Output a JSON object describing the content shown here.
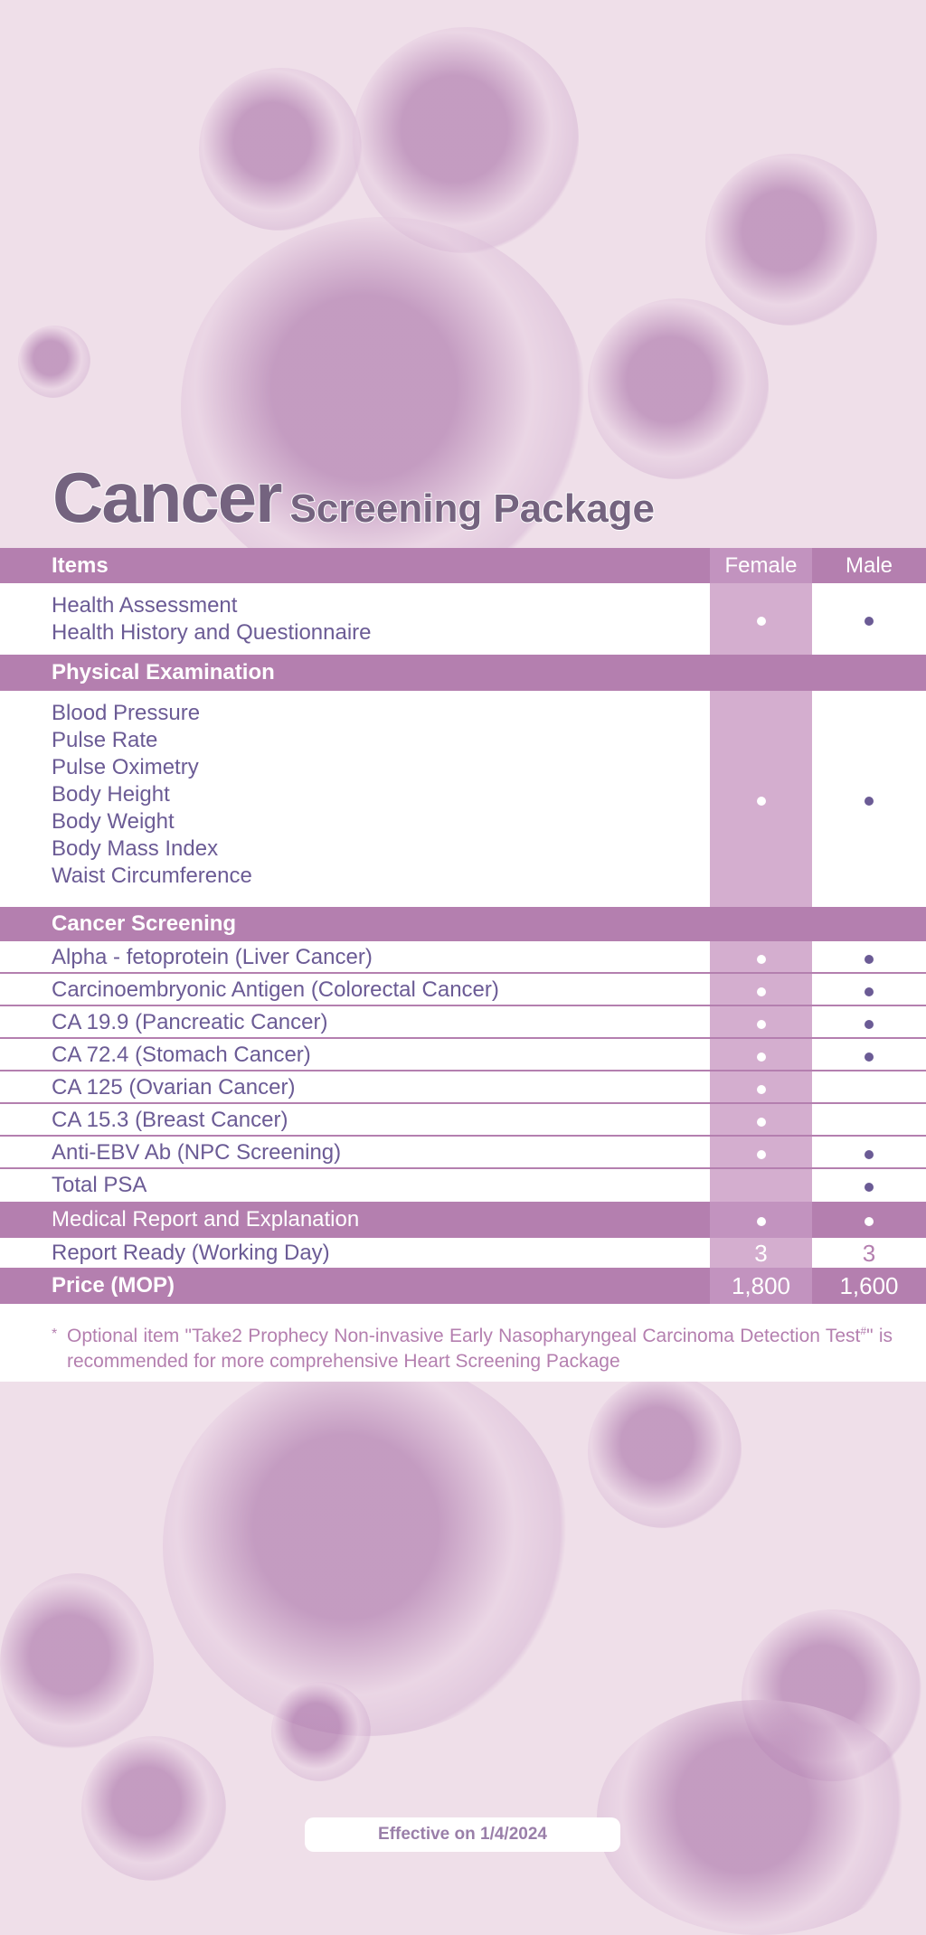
{
  "title": {
    "main": "Cancer",
    "sub": "Screening Package"
  },
  "header": {
    "items": "Items",
    "female": "Female",
    "male": "Male"
  },
  "health": {
    "lines": [
      "Health Assessment",
      "Health History and Questionnaire"
    ],
    "female": true,
    "male": true
  },
  "physical": {
    "heading": "Physical Examination",
    "lines": [
      "Blood Pressure",
      "Pulse Rate",
      "Pulse Oximetry",
      "Body Height",
      "Body Weight",
      "Body Mass Index",
      "Waist Circumference"
    ],
    "female": true,
    "male": true
  },
  "cancer": {
    "heading": "Cancer Screening",
    "rows": [
      {
        "label": "Alpha - fetoprotein (Liver Cancer)",
        "female": true,
        "male": true
      },
      {
        "label": "Carcinoembryonic Antigen (Colorectal Cancer)",
        "female": true,
        "male": true
      },
      {
        "label": "CA 19.9 (Pancreatic Cancer)",
        "female": true,
        "male": true
      },
      {
        "label": "CA 72.4 (Stomach Cancer)",
        "female": true,
        "male": true
      },
      {
        "label": "CA 125 (Ovarian Cancer)",
        "female": true,
        "male": false
      },
      {
        "label": "CA 15.3 (Breast Cancer)",
        "female": true,
        "male": false
      },
      {
        "label": "Anti-EBV Ab (NPC Screening)",
        "female": true,
        "male": true
      },
      {
        "label": "Total PSA",
        "female": false,
        "male": true
      }
    ]
  },
  "report": {
    "label": "Medical Report and Explanation",
    "female": true,
    "male": true
  },
  "ready": {
    "label": "Report Ready (Working Day)",
    "female": "3",
    "male": "3"
  },
  "price": {
    "label": "Price (MOP)",
    "female": "1,800",
    "male": "1,600"
  },
  "note": {
    "asterisk": "*",
    "text": "Optional item \"Take2 Prophecy Non-invasive Early Nasopharyngeal Carcinoma Detection Test#\" is recommended for more comprehensive Heart Screening Package"
  },
  "effective": "Effective on 1/4/2024",
  "colors": {
    "header": "#b47faf",
    "female_column": "#d4aecf",
    "text": "#6b5b95",
    "background": "#efdfe9"
  }
}
